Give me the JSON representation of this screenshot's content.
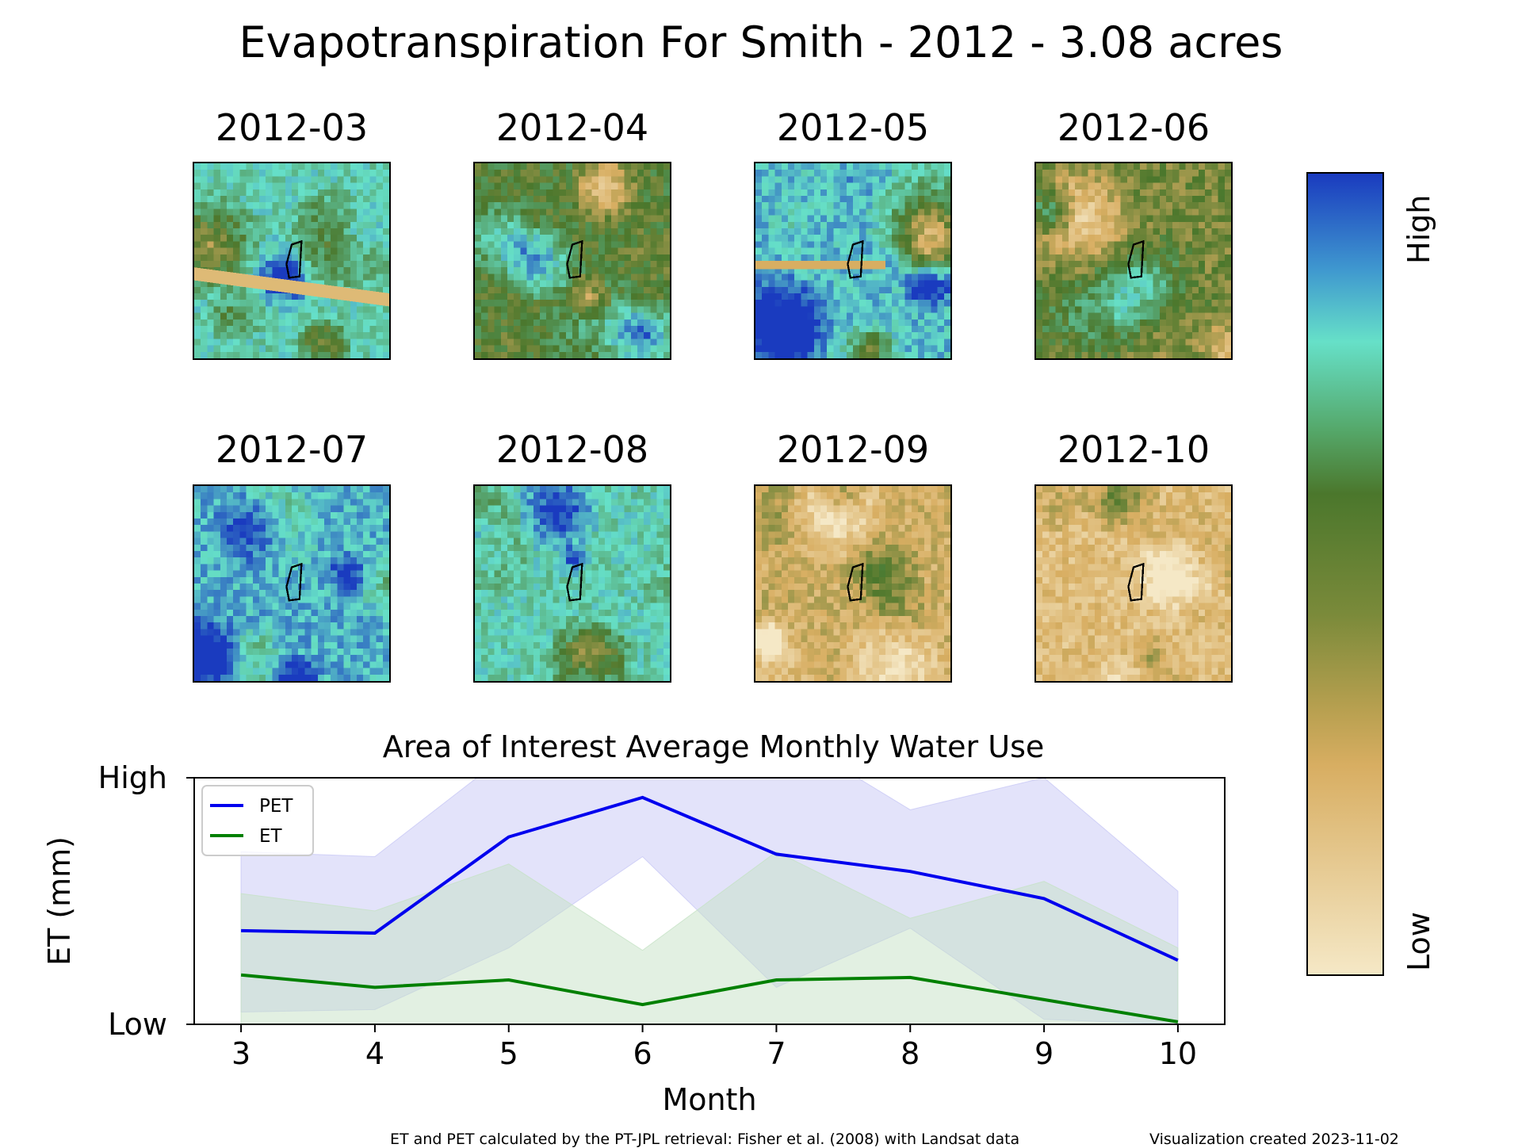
{
  "title": "Evapotranspiration For Smith - 2012 - 3.08 acres",
  "maps": [
    {
      "label": "2012-03"
    },
    {
      "label": "2012-04"
    },
    {
      "label": "2012-05"
    },
    {
      "label": "2012-06"
    },
    {
      "label": "2012-07"
    },
    {
      "label": "2012-08"
    },
    {
      "label": "2012-09"
    },
    {
      "label": "2012-10"
    }
  ],
  "colorbar": {
    "high_label": "High",
    "low_label": "Low",
    "colors": [
      "#1a3bbf",
      "#66e0c8",
      "#4b772c",
      "#d8ae62",
      "#f5e8c6"
    ]
  },
  "chart_data": {
    "type": "line",
    "title": "Area of Interest Average Monthly Water Use",
    "xlabel": "Month",
    "ylabel": "ET (mm)",
    "x": [
      3,
      4,
      5,
      6,
      7,
      8,
      9,
      10
    ],
    "xlim": [
      2.65,
      10.35
    ],
    "ylim": [
      0,
      1
    ],
    "y_tick_labels": [
      {
        "value": 0,
        "label": "Low"
      },
      {
        "value": 1,
        "label": "High"
      }
    ],
    "legend_position": "top-left",
    "series": [
      {
        "name": "PET",
        "color": "#0000ee",
        "values": [
          0.38,
          0.37,
          0.76,
          0.92,
          0.69,
          0.62,
          0.51,
          0.26
        ],
        "band_upper": [
          0.7,
          0.68,
          1.1,
          1.25,
          1.2,
          0.87,
          1.0,
          0.54
        ],
        "band_lower": [
          0.05,
          0.06,
          0.31,
          0.68,
          0.15,
          0.39,
          0.02,
          0.0
        ],
        "band_color": "#c8c8f5"
      },
      {
        "name": "ET",
        "color": "#008000",
        "values": [
          0.2,
          0.15,
          0.18,
          0.08,
          0.18,
          0.19,
          0.1,
          0.01
        ],
        "band_upper": [
          0.53,
          0.46,
          0.65,
          0.3,
          0.7,
          0.43,
          0.58,
          0.31
        ],
        "band_lower": [
          0.0,
          0.0,
          0.0,
          0.0,
          0.0,
          0.0,
          0.0,
          0.0
        ],
        "band_color": "#c6e2c6"
      }
    ]
  },
  "footer": {
    "credit": "ET and PET calculated by the PT-JPL retrieval: Fisher et al. (2008) with Landsat data",
    "created": "Visualization created 2023-11-02"
  }
}
